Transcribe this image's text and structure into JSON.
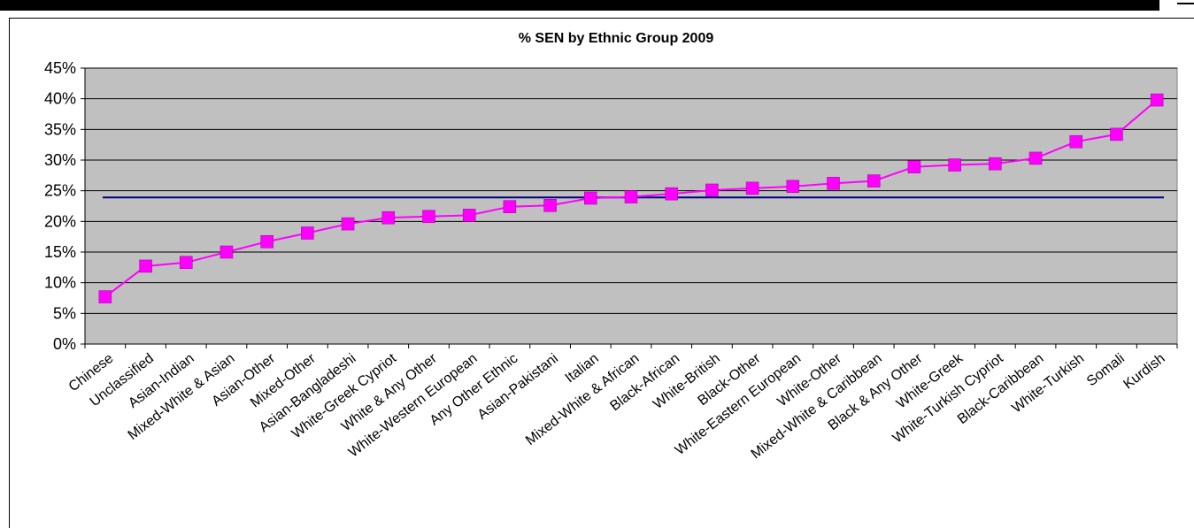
{
  "chart_data": {
    "type": "line",
    "title": "% SEN by Ethnic Group 2009",
    "xlabel": "",
    "ylabel": "",
    "ylim": [
      0,
      45
    ],
    "yticks": [
      "0%",
      "5%",
      "10%",
      "15%",
      "20%",
      "25%",
      "30%",
      "35%",
      "40%",
      "45%"
    ],
    "grid": true,
    "legend": "none",
    "categories": [
      "Chinese",
      "Unclassified",
      "Asian-Indian",
      "Mixed-White & Asian",
      "Asian-Other",
      "Mixed-Other",
      "Asian-Bangladeshi",
      "White-Greek Cypriot",
      "White & Any Other",
      "White-Western European",
      "Any Other Ethnic",
      "Asian-Pakistani",
      "Italian",
      "Mixed-White & African",
      "Black-African",
      "White-British",
      "Black-Other",
      "White-Eastern European",
      "White-Other",
      "Mixed-White & Caribbean",
      "Black & Any Other",
      "White-Greek",
      "White-Turkish Cypriot",
      "Black-Caribbean",
      "White-Turkish",
      "Somali",
      "Kurdish"
    ],
    "series": [
      {
        "values": [
          7.7,
          12.7,
          13.3,
          15.0,
          16.7,
          18.1,
          19.6,
          20.6,
          20.8,
          21.0,
          22.4,
          22.6,
          23.8,
          24.0,
          24.5,
          25.1,
          25.4,
          25.7,
          26.2,
          26.6,
          28.9,
          29.2,
          29.4,
          30.3,
          33.0,
          34.2,
          39.8
        ],
        "color": "#ff00ff"
      }
    ],
    "reference_line": {
      "value": 23.9,
      "color": "#000080"
    },
    "plot_background": "#c0c0c0"
  }
}
